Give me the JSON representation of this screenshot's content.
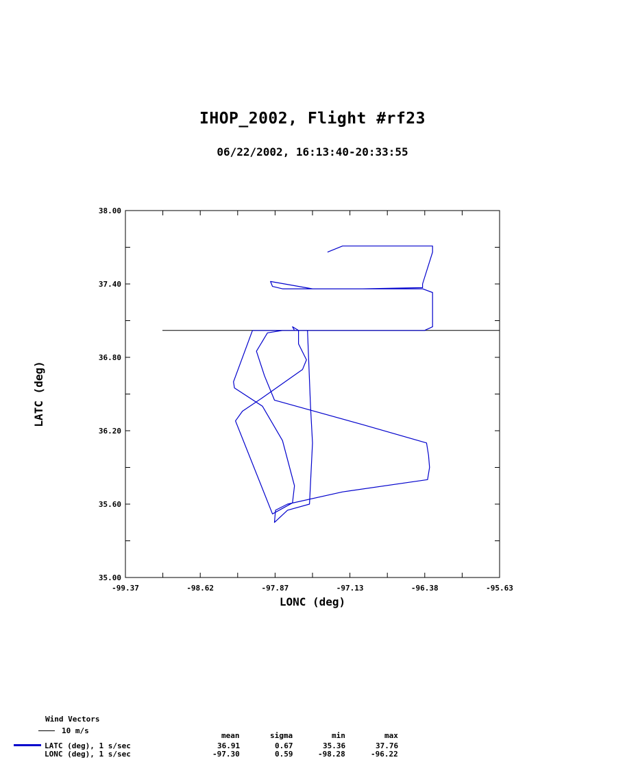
{
  "chart_data": {
    "type": "line",
    "title": "IHOP_2002, Flight #rf23",
    "subtitle": "06/22/2002, 16:13:40-20:33:55",
    "xlabel": "LONC (deg)",
    "ylabel": "LATC (deg)",
    "xlim": [
      -99.37,
      -95.63
    ],
    "ylim": [
      35.0,
      38.0
    ],
    "x_ticks": [
      "-99.37",
      "-98.62",
      "-97.87",
      "-97.13",
      "-96.38",
      "-95.63"
    ],
    "y_ticks": [
      "38.00",
      "37.40",
      "36.80",
      "36.20",
      "35.60",
      "35.00"
    ],
    "grid": false,
    "reference_line": {
      "y": 37.02,
      "x_start": -99.0,
      "x_end": -95.63
    },
    "series": [
      {
        "color": "#0000cc",
        "x": [
          -97.35,
          -97.2,
          -96.8,
          -96.3,
          -96.3,
          -96.4,
          -96.4,
          -97.0,
          -97.8,
          -97.9,
          -97.92,
          -97.5,
          -96.4,
          -96.3,
          -96.3,
          -96.38,
          -96.6,
          -97.1,
          -98.1,
          -98.29,
          -98.28,
          -98.0,
          -97.8,
          -97.68,
          -97.7,
          -97.9,
          -98.27,
          -98.2,
          -98.0,
          -97.6,
          -97.56,
          -97.64,
          -97.64,
          -97.7,
          -97.68,
          -97.55,
          -97.52,
          -97.5,
          -97.53,
          -97.75,
          -97.88,
          -97.87,
          -97.75,
          -97.2,
          -96.35,
          -96.33,
          -96.34,
          -96.36,
          -97.0,
          -97.88,
          -97.98,
          -98.06,
          -97.95,
          -97.8,
          -97.45,
          -97.25,
          -97.2
        ],
        "y": [
          37.66,
          37.71,
          37.71,
          37.71,
          37.66,
          37.4,
          37.37,
          37.36,
          37.36,
          37.38,
          37.42,
          37.36,
          37.36,
          37.33,
          37.05,
          37.02,
          37.02,
          37.02,
          37.02,
          36.6,
          36.55,
          36.4,
          36.12,
          35.75,
          35.61,
          35.52,
          36.28,
          36.36,
          36.47,
          36.7,
          36.78,
          36.91,
          37.02,
          37.05,
          37.02,
          37.02,
          36.4,
          36.1,
          35.6,
          35.55,
          35.45,
          35.55,
          35.6,
          35.7,
          35.8,
          35.9,
          36.0,
          36.1,
          36.25,
          36.45,
          36.65,
          36.85,
          37.0,
          37.02,
          37.02,
          37.02,
          37.02
        ]
      }
    ]
  },
  "legend": {
    "wind_title": "Wind Vectors",
    "wind_scale": "10 m/s"
  },
  "stats": {
    "headers": [
      "mean",
      "sigma",
      "min",
      "max"
    ],
    "rows": [
      {
        "label": "LATC (deg), 1 s/sec",
        "values": [
          "36.91",
          "0.67",
          "35.36",
          "37.76"
        ],
        "color": "#0000cc"
      },
      {
        "label": "LONC (deg), 1 s/sec",
        "values": [
          "-97.30",
          "0.59",
          "-98.28",
          "-96.22"
        ],
        "color": ""
      }
    ]
  }
}
